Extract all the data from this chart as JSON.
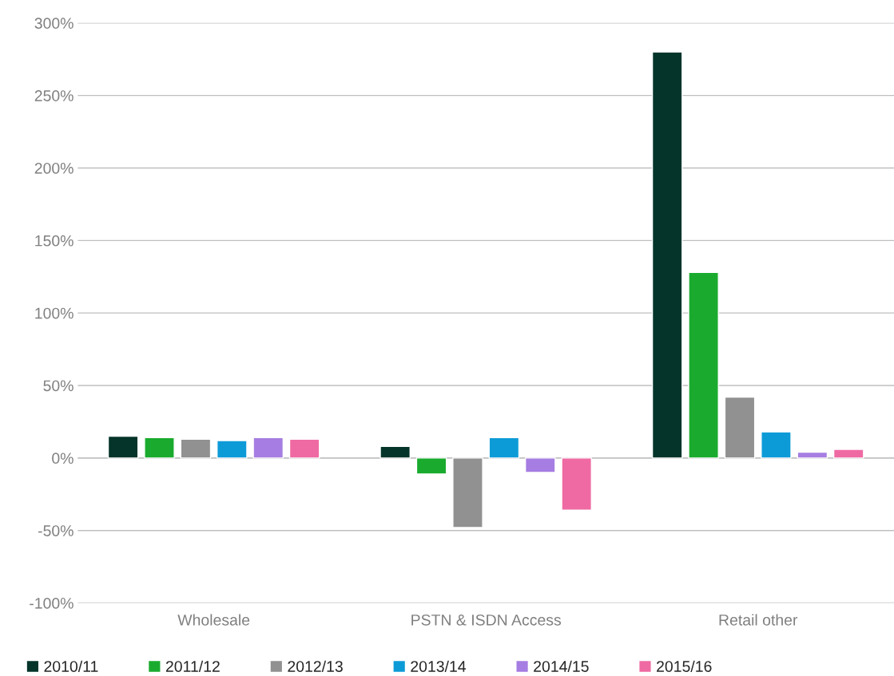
{
  "chart_data": {
    "type": "bar",
    "categories": [
      "Wholesale",
      "PSTN & ISDN Access",
      "Retail other"
    ],
    "series": [
      {
        "name": "2010/11",
        "color": "#04342a",
        "values": [
          15,
          8,
          280
        ]
      },
      {
        "name": "2011/12",
        "color": "#1aab2e",
        "values": [
          14,
          -11,
          128
        ]
      },
      {
        "name": "2012/13",
        "color": "#919191",
        "values": [
          13,
          -48,
          42
        ]
      },
      {
        "name": "2013/14",
        "color": "#0d9bd8",
        "values": [
          12,
          14,
          18
        ]
      },
      {
        "name": "2014/15",
        "color": "#a67de2",
        "values": [
          14,
          -10,
          4
        ]
      },
      {
        "name": "2015/16",
        "color": "#ef6aa3",
        "values": [
          13,
          -36,
          6
        ]
      }
    ],
    "ylim": [
      -100,
      300
    ],
    "yticks": [
      {
        "value": -100,
        "label": "-100%"
      },
      {
        "value": -50,
        "label": "-50%"
      },
      {
        "value": 0,
        "label": "0%"
      },
      {
        "value": 50,
        "label": "50%"
      },
      {
        "value": 100,
        "label": "100%"
      },
      {
        "value": 150,
        "label": "150%"
      },
      {
        "value": 200,
        "label": "200%"
      },
      {
        "value": 250,
        "label": "250%"
      },
      {
        "value": 300,
        "label": "300%"
      }
    ],
    "grid": "y",
    "legend": "bottom left"
  }
}
